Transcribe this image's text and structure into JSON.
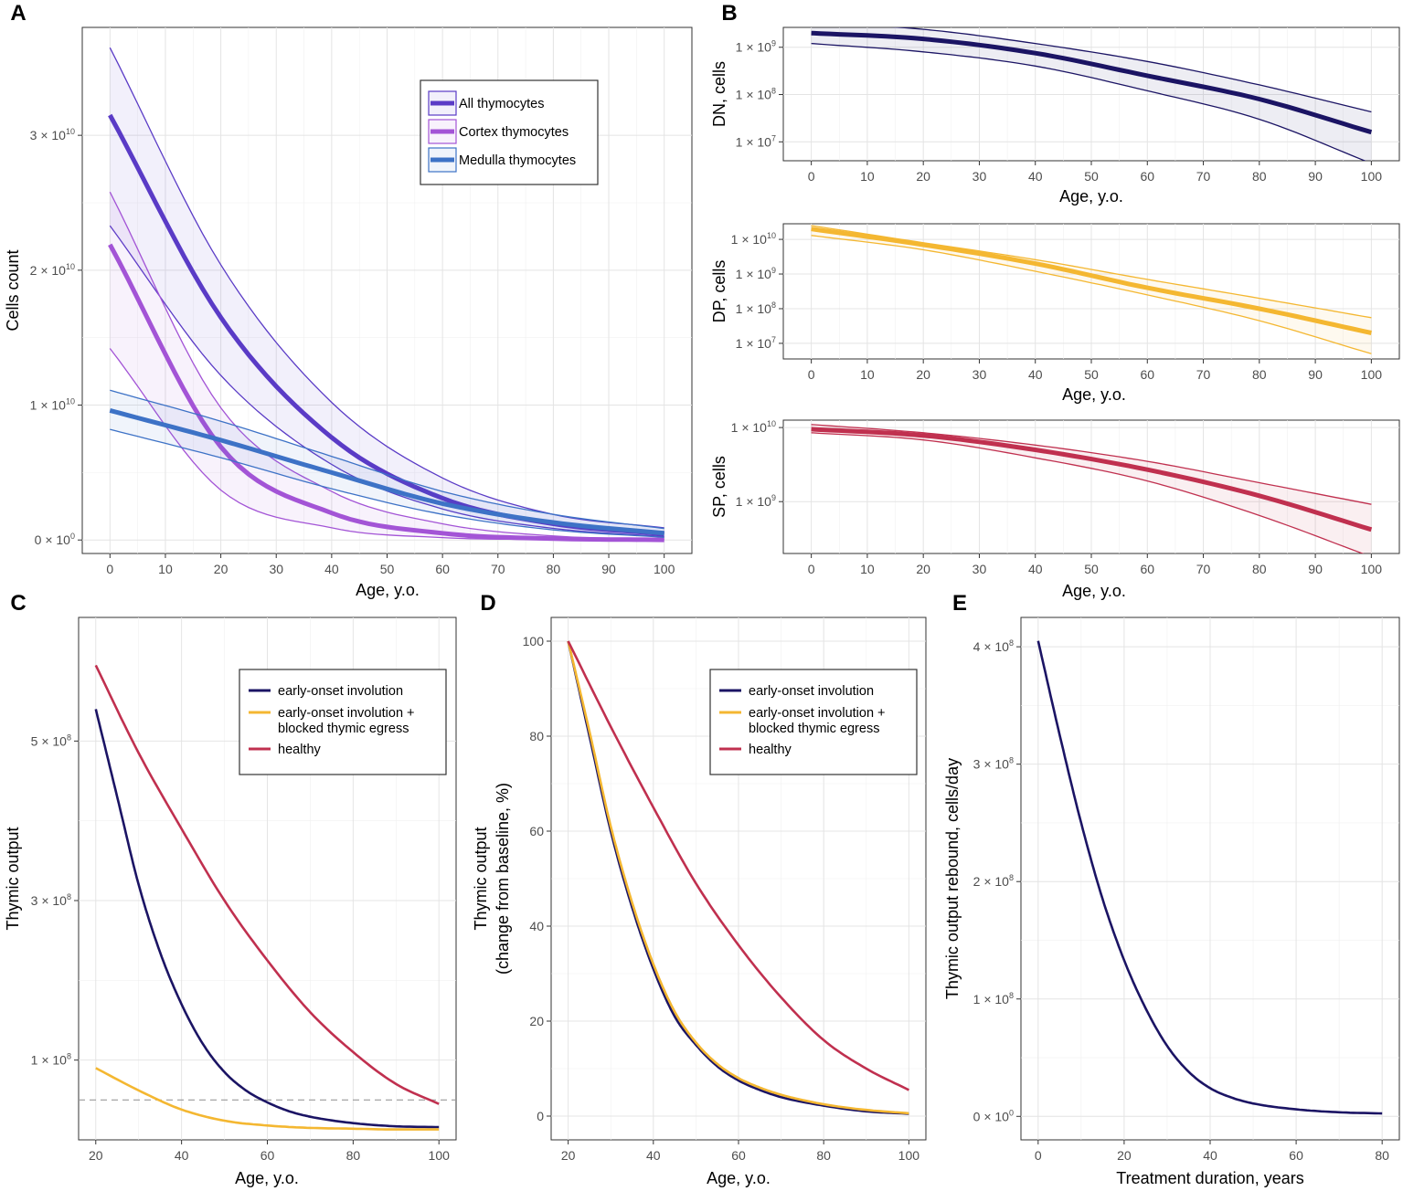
{
  "figure": {
    "panel_labels": [
      "A",
      "B",
      "C",
      "D",
      "E"
    ],
    "colors": {
      "all": "#5A3BC6",
      "cortex": "#A354D6",
      "medulla": "#3D72C6",
      "dn": "#1B1464",
      "dp": "#F4B731",
      "sp": "#C0304F",
      "early": "#1B1464",
      "blocked": "#F4B731",
      "healthy": "#C0304F",
      "threshold": "#999999"
    }
  },
  "chart_data": [
    {
      "id": "A",
      "type": "line",
      "title": "",
      "xlabel": "Age, y.o.",
      "ylabel": "Cells count",
      "xlim": [
        -5,
        105
      ],
      "ylim": [
        -1000000000.0,
        38000000000.0
      ],
      "xticks": [
        0,
        10,
        20,
        30,
        40,
        50,
        60,
        70,
        80,
        90,
        100
      ],
      "yticks": [
        0,
        10000000000.0,
        20000000000.0,
        30000000000.0
      ],
      "ytick_labels": [
        {
          "base": "0 × 10",
          "exp": "0"
        },
        {
          "base": "1 × 10",
          "exp": "10"
        },
        {
          "base": "2 × 10",
          "exp": "10"
        },
        {
          "base": "3 × 10",
          "exp": "10"
        }
      ],
      "legend_position": "top-right",
      "series": [
        {
          "name": "All thymocytes",
          "color_key": "all",
          "x": [
            0,
            20,
            40,
            60,
            80,
            100
          ],
          "mean": [
            31500000000.0,
            16500000000.0,
            7600000000.0,
            3100000000.0,
            1200000000.0,
            450000000.0
          ],
          "lower": [
            23300000000.0,
            12200000000.0,
            5600000000.0,
            2300000000.0,
            860000000.0,
            250000000.0
          ],
          "upper": [
            36500000000.0,
            20400000000.0,
            10200000000.0,
            4600000000.0,
            1900000000.0,
            900000000.0
          ]
        },
        {
          "name": "Cortex thymocytes",
          "color_key": "cortex",
          "x": [
            0,
            20,
            40,
            60,
            80,
            100
          ],
          "mean": [
            21900000000.0,
            6900000000.0,
            2000000000.0,
            500000000.0,
            100000000.0,
            10000000.0
          ],
          "lower": [
            14200000000.0,
            3700000000.0,
            900000000.0,
            180000000.0,
            30000000.0,
            0
          ],
          "upper": [
            25800000000.0,
            9800000000.0,
            3600000000.0,
            1200000000.0,
            300000000.0,
            50000000.0
          ]
        },
        {
          "name": "Medulla thymocytes",
          "color_key": "medulla",
          "x": [
            0,
            20,
            40,
            60,
            80,
            100
          ],
          "mean": [
            9600000000.0,
            7400000000.0,
            5000000000.0,
            2700000000.0,
            1300000000.0,
            500000000.0
          ],
          "lower": [
            8200000000.0,
            6100000000.0,
            3800000000.0,
            1900000000.0,
            750000000.0,
            200000000.0
          ],
          "upper": [
            11100000000.0,
            8800000000.0,
            6200000000.0,
            3600000000.0,
            1900000000.0,
            850000000.0
          ]
        }
      ]
    },
    {
      "id": "B-DN",
      "type": "line",
      "scale": "log10",
      "xlabel": "Age, y.o.",
      "ylabel": "DN, cells",
      "xlim": [
        -5,
        105
      ],
      "ylim_log10": [
        6.6,
        9.42
      ],
      "xticks": [
        0,
        10,
        20,
        30,
        40,
        50,
        60,
        70,
        80,
        90,
        100
      ],
      "ytick_log10": [
        7,
        8,
        9
      ],
      "ytick_labels": [
        {
          "base": "1 × 10",
          "exp": "7"
        },
        {
          "base": "1 × 10",
          "exp": "8"
        },
        {
          "base": "1 × 10",
          "exp": "9"
        }
      ],
      "series": [
        {
          "name": "DN",
          "color_key": "dn",
          "x": [
            0,
            20,
            40,
            60,
            80,
            100
          ],
          "mean": [
            2000000000.0,
            1500000000.0,
            750000000.0,
            250000000.0,
            80000000.0,
            16000000.0
          ],
          "lower": [
            1200000000.0,
            800000000.0,
            400000000.0,
            120000000.0,
            30000000.0,
            3500000.0
          ],
          "upper": [
            3300000000.0,
            2400000000.0,
            1200000000.0,
            500000000.0,
            160000000.0,
            43000000.0
          ]
        }
      ]
    },
    {
      "id": "B-DP",
      "type": "line",
      "scale": "log10",
      "xlabel": "Age, y.o.",
      "ylabel": "DP, cells",
      "xlim": [
        -5,
        105
      ],
      "ylim_log10": [
        6.55,
        10.45
      ],
      "xticks": [
        0,
        10,
        20,
        30,
        40,
        50,
        60,
        70,
        80,
        90,
        100
      ],
      "ytick_log10": [
        7,
        8,
        9,
        10
      ],
      "ytick_labels": [
        {
          "base": "1 × 10",
          "exp": "7"
        },
        {
          "base": "1 × 10",
          "exp": "8"
        },
        {
          "base": "1 × 10",
          "exp": "9"
        },
        {
          "base": "1 × 10",
          "exp": "10"
        }
      ],
      "series": [
        {
          "name": "DP",
          "color_key": "dp",
          "x": [
            0,
            20,
            40,
            60,
            80,
            100
          ],
          "mean": [
            20000000000.0,
            7000000000.0,
            2000000000.0,
            400000000.0,
            100000000.0,
            20000000.0
          ],
          "lower": [
            13000000000.0,
            5000000000.0,
            1200000000.0,
            250000000.0,
            45000000.0,
            5000000.0
          ],
          "upper": [
            25000000000.0,
            8000000000.0,
            2600000000.0,
            700000000.0,
            200000000.0,
            55000000.0
          ]
        }
      ]
    },
    {
      "id": "B-SP",
      "type": "line",
      "scale": "log10",
      "xlabel": "Age, y.o.",
      "ylabel": "SP, cells",
      "xlim": [
        -5,
        105
      ],
      "ylim_log10": [
        8.3,
        10.1
      ],
      "xticks": [
        0,
        10,
        20,
        30,
        40,
        50,
        60,
        70,
        80,
        90,
        100
      ],
      "ytick_log10": [
        9,
        10
      ],
      "ytick_labels": [
        {
          "base": "1 × 10",
          "exp": "9"
        },
        {
          "base": "1 × 10",
          "exp": "10"
        }
      ],
      "series": [
        {
          "name": "SP",
          "color_key": "sp",
          "x": [
            0,
            20,
            40,
            60,
            80,
            100
          ],
          "mean": [
            9500000000.0,
            7800000000.0,
            5000000000.0,
            2700000000.0,
            1200000000.0,
            420000000.0
          ],
          "lower": [
            8500000000.0,
            6800000000.0,
            3900000000.0,
            1900000000.0,
            650000000.0,
            180000000.0
          ],
          "upper": [
            11000000000.0,
            8500000000.0,
            5800000000.0,
            3500000000.0,
            1800000000.0,
            920000000.0
          ]
        }
      ]
    },
    {
      "id": "C",
      "type": "line",
      "xlabel": "Age, y.o.",
      "ylabel": "Thymic output",
      "xlim": [
        16,
        104
      ],
      "ylim": [
        0,
        655000000.0
      ],
      "xticks": [
        20,
        40,
        60,
        80,
        100
      ],
      "ytick_values": [
        100000000.0,
        300000000.0,
        500000000.0
      ],
      "ytick_labels": [
        {
          "base": "1 × 10",
          "exp": "8"
        },
        {
          "base": "3 × 10",
          "exp": "8"
        },
        {
          "base": "5 × 10",
          "exp": "8"
        }
      ],
      "reference_line": {
        "y": 50000000.0,
        "style": "dashed"
      },
      "legend_position": "top-right",
      "series": [
        {
          "name": "early-onset involution",
          "color_key": "early",
          "x": [
            20,
            25,
            30,
            35,
            40,
            45,
            50,
            55,
            60,
            65,
            70,
            80,
            90,
            100
          ],
          "y": [
            540000000.0,
            430000000.0,
            320000000.0,
            235000000.0,
            170000000.0,
            120000000.0,
            85000000.0,
            62000000.0,
            47000000.0,
            36000000.0,
            29000000.0,
            21000000.0,
            17000000.0,
            16000000.0
          ]
        },
        {
          "name": "early-onset involution + blocked thymic egress",
          "color_key": "blocked",
          "x": [
            20,
            30,
            40,
            50,
            60,
            70,
            80,
            90,
            100
          ],
          "y": [
            90000000.0,
            62000000.0,
            38000000.0,
            24000000.0,
            18000000.0,
            15000000.0,
            14000000.0,
            13000000.0,
            13000000.0
          ]
        },
        {
          "name": "healthy",
          "color_key": "healthy",
          "x": [
            20,
            30,
            40,
            50,
            60,
            70,
            80,
            90,
            100
          ],
          "y": [
            595000000.0,
            485000000.0,
            390000000.0,
            300000000.0,
            225000000.0,
            160000000.0,
            110000000.0,
            70000000.0,
            45000000.0
          ]
        }
      ]
    },
    {
      "id": "D",
      "type": "line",
      "xlabel": "Age, y.o.",
      "ylabel": "Thymic output",
      "ylabel_line2": "(change from baseline, %)",
      "xlim": [
        16,
        104
      ],
      "ylim": [
        -5,
        105
      ],
      "xticks": [
        20,
        40,
        60,
        80,
        100
      ],
      "yticks": [
        0,
        20,
        40,
        60,
        80,
        100
      ],
      "legend_position": "top-right",
      "series": [
        {
          "name": "early-onset involution",
          "color_key": "early",
          "x": [
            20,
            25,
            30,
            35,
            40,
            45,
            50,
            55,
            60,
            65,
            70,
            80,
            90,
            100
          ],
          "y": [
            100,
            80,
            60,
            44,
            31,
            21,
            15,
            10.5,
            7.5,
            5.5,
            4,
            2.2,
            1.0,
            0.5
          ]
        },
        {
          "name": "early-onset involution + blocked thymic egress",
          "color_key": "blocked",
          "x": [
            20,
            25,
            30,
            35,
            40,
            45,
            50,
            55,
            60,
            65,
            70,
            80,
            90,
            100
          ],
          "y": [
            100,
            81,
            61,
            45,
            32,
            22,
            15.5,
            11,
            8,
            6,
            4.5,
            2.5,
            1.3,
            0.6
          ]
        },
        {
          "name": "healthy",
          "color_key": "healthy",
          "x": [
            20,
            30,
            40,
            50,
            60,
            70,
            80,
            90,
            100
          ],
          "y": [
            100,
            82,
            65,
            49,
            36,
            25,
            16,
            10,
            5.5
          ]
        }
      ]
    },
    {
      "id": "E",
      "type": "line",
      "xlabel": "Treatment duration, years",
      "ylabel": "Thymic output rebound, cells/day",
      "xlim": [
        -4,
        84
      ],
      "ylim": [
        -20000000.0,
        425000000.0
      ],
      "xticks": [
        0,
        20,
        40,
        60,
        80
      ],
      "ytick_values": [
        0,
        100000000.0,
        200000000.0,
        300000000.0,
        400000000.0
      ],
      "ytick_labels": [
        {
          "base": "0 × 10",
          "exp": "0"
        },
        {
          "base": "1 × 10",
          "exp": "8"
        },
        {
          "base": "2 × 10",
          "exp": "8"
        },
        {
          "base": "3 × 10",
          "exp": "8"
        },
        {
          "base": "4 × 10",
          "exp": "8"
        }
      ],
      "series": [
        {
          "name": "rebound",
          "color_key": "early",
          "x": [
            0,
            5,
            10,
            15,
            20,
            25,
            30,
            35,
            40,
            45,
            50,
            60,
            70,
            80
          ],
          "y": [
            405000000.0,
            325000000.0,
            250000000.0,
            185000000.0,
            133000000.0,
            92000000.0,
            60000000.0,
            38000000.0,
            24000000.0,
            16000000.0,
            11000000.0,
            6000000.0,
            3500000.0,
            2500000.0
          ]
        }
      ]
    }
  ]
}
